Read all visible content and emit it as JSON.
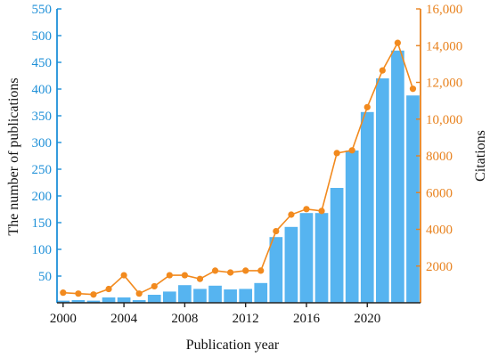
{
  "chart_data": {
    "type": "bar",
    "title": "",
    "xlabel": "Publication year",
    "ylabel": "The number of publications",
    "y2label": "Citations",
    "x": [
      2000,
      2001,
      2002,
      2003,
      2004,
      2005,
      2006,
      2007,
      2008,
      2009,
      2010,
      2011,
      2012,
      2013,
      2014,
      2015,
      2016,
      2017,
      2018,
      2019,
      2020,
      2021,
      2022,
      2023
    ],
    "xticks": [
      "2000",
      "2004",
      "2008",
      "2012",
      "2016",
      "2020"
    ],
    "xtick_values": [
      2000,
      2004,
      2008,
      2012,
      2016,
      2020
    ],
    "yticks": [
      "50",
      "100",
      "150",
      "200",
      "250",
      "300",
      "350",
      "400",
      "450",
      "500",
      "550"
    ],
    "ytick_values": [
      50,
      100,
      150,
      200,
      250,
      300,
      350,
      400,
      450,
      500,
      550
    ],
    "y2ticks": [
      "2000",
      "4000",
      "6000",
      "8000",
      "10,000",
      "12,000",
      "14,000",
      "16,000"
    ],
    "y2tick_values": [
      2000,
      4000,
      6000,
      8000,
      10000,
      12000,
      14000,
      16000
    ],
    "ylim": [
      0,
      550
    ],
    "y2lim": [
      0,
      16000
    ],
    "xlim": [
      1999.6,
      2023.5
    ],
    "grid": false,
    "series": [
      {
        "type": "bar",
        "axis": "left",
        "color": "#56b4f0",
        "values": [
          4,
          5,
          4,
          10,
          10,
          5,
          15,
          21,
          33,
          26,
          32,
          25,
          26,
          37,
          123,
          142,
          168,
          168,
          215,
          285,
          357,
          420,
          472,
          388
        ]
      },
      {
        "type": "line",
        "axis": "right",
        "color": "#f28a1e",
        "values": [
          550,
          500,
          450,
          750,
          1500,
          500,
          900,
          1500,
          1500,
          1300,
          1750,
          1650,
          1750,
          1750,
          3900,
          4800,
          5100,
          5000,
          8150,
          8300,
          10650,
          12650,
          14150,
          11650
        ]
      }
    ]
  },
  "colors": {
    "bar": "#56b4f0",
    "line": "#f28a1e",
    "left_axis": "#1e90d8",
    "right_axis": "#e8821e"
  }
}
